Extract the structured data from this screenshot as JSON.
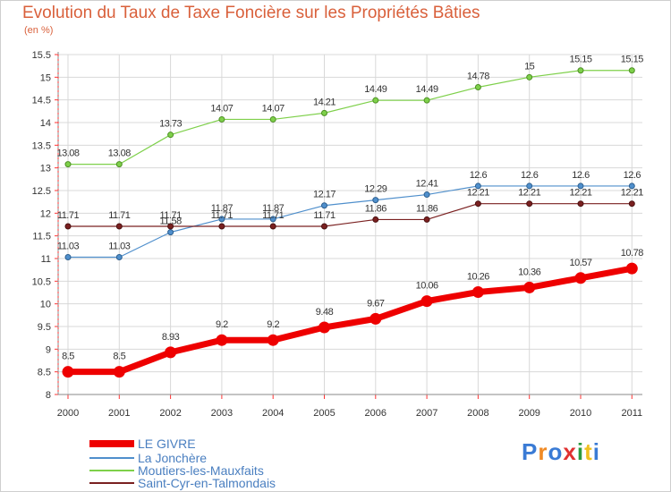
{
  "title": "Evolution du Taux de Taxe Foncière sur les Propriétés Bâties",
  "unit": "(en %)",
  "logo": "Proxiti",
  "colors": {
    "background_plot": "#ffffff",
    "grid": "#d8d8d8",
    "axis": "#8a8a8a",
    "title": "#d9603b",
    "legend_text": "#4a7fc0"
  },
  "chart_data": {
    "type": "line",
    "title": "Evolution du Taux de Taxe Foncière sur les Propriétés Bâties",
    "ylabel": "(en %)",
    "xlabel": "",
    "x": [
      "2000",
      "2001",
      "2002",
      "2003",
      "2004",
      "2005",
      "2006",
      "2007",
      "2008",
      "2009",
      "2010",
      "2011"
    ],
    "ylim": [
      8,
      15.5
    ],
    "yticks": [
      "8",
      "8.5",
      "9",
      "9.5",
      "10",
      "10.5",
      "11",
      "11.5",
      "12",
      "12.5",
      "13",
      "13.5",
      "14",
      "14.5",
      "15",
      "15.5"
    ],
    "grid": true,
    "legend_position": "bottom-left",
    "series": [
      {
        "name": "LE GIVRE",
        "color": "#ee0000",
        "values": [
          8.5,
          8.5,
          8.93,
          9.2,
          9.2,
          9.48,
          9.67,
          10.06,
          10.26,
          10.36,
          10.57,
          10.78
        ],
        "labels": [
          "8.5",
          "8.5",
          "8.93",
          "9.2",
          "9.2",
          "9.48",
          "9.67",
          "10.06",
          "10.26",
          "10.36",
          "10.57",
          "10.78"
        ]
      },
      {
        "name": "La Jonchère",
        "color": "#4f8fcc",
        "values": [
          11.03,
          11.03,
          11.58,
          11.87,
          11.87,
          12.17,
          12.29,
          12.41,
          12.6,
          12.6,
          12.6,
          12.6
        ],
        "labels": [
          "11.03",
          "11.03",
          "11.58",
          "11.87",
          "11.87",
          "12.17",
          "12.29",
          "12.41",
          "12.6",
          "12.6",
          "12.6",
          "12.6"
        ]
      },
      {
        "name": "Moutiers-les-Mauxfaits",
        "color": "#7ed04a",
        "values": [
          13.08,
          13.08,
          13.73,
          14.07,
          14.07,
          14.21,
          14.49,
          14.49,
          14.78,
          15,
          15.15,
          15.15
        ],
        "labels": [
          "13.08",
          "13.08",
          "13.73",
          "14.07",
          "14.07",
          "14.21",
          "14.49",
          "14.49",
          "14.78",
          "15",
          "15.15",
          "15.15"
        ]
      },
      {
        "name": "Saint-Cyr-en-Talmondais",
        "color": "#7a2020",
        "values": [
          11.71,
          11.71,
          11.71,
          11.71,
          11.71,
          11.71,
          11.86,
          11.86,
          12.21,
          12.21,
          12.21,
          12.21
        ],
        "labels": [
          "11.71",
          "11.71",
          "11.71",
          "11.71",
          "11.71",
          "11.71",
          "11.86",
          "11.86",
          "12.21",
          "12.21",
          "12.21",
          "12.21"
        ]
      }
    ]
  }
}
